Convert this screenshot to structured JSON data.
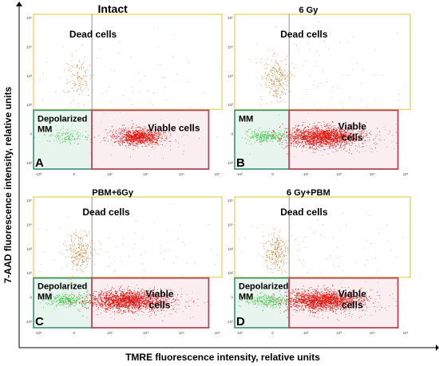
{
  "figure": {
    "x_axis_title": "TMRE fluorescence intensity, relative units",
    "y_axis_title": "7-AAD fluorescence intensity, relative units"
  },
  "colors": {
    "dead_gate": "#e8dc7a",
    "viable_gate": "#b5475a",
    "depolarized_gate": "#3a8f7a",
    "dead_cells": "#c9904a",
    "viable_cells": "#e8140e",
    "depolarized_cells": "#3fc23f",
    "scatter_noise": "#d98a50"
  },
  "chart_data": [
    {
      "type": "scatter",
      "panel": "A",
      "title": "Intact",
      "gates": {
        "dead": "Dead cells",
        "depolarized": "Depolarized\nMM",
        "viable": "Viable cells"
      },
      "populations": {
        "dead": "sparse",
        "depolarized": "sparse",
        "viable": "dense-compact"
      },
      "x_ticks": [
        "-10²",
        "0",
        "10²",
        "10³",
        "10⁴",
        "10⁵"
      ],
      "y_ticks": [
        "-10²",
        "0",
        "10²",
        "10³",
        "10⁴",
        "10⁵"
      ]
    },
    {
      "type": "scatter",
      "panel": "B",
      "title": "6 Gy",
      "gates": {
        "dead": "Dead cells",
        "depolarized": "MM",
        "viable": "Viable\ncells"
      },
      "populations": {
        "dead": "medium",
        "depolarized": "medium",
        "viable": "dense-wide"
      },
      "x_ticks": [
        "-10²",
        "0",
        "10²",
        "10³",
        "10⁴",
        "10⁵"
      ],
      "y_ticks": [
        "-10²",
        "0",
        "10²",
        "10³",
        "10⁴",
        "10⁵"
      ]
    },
    {
      "type": "scatter",
      "panel": "C",
      "title": "PBM+6Gy",
      "gates": {
        "dead": "Dead cells",
        "depolarized": "Depolarized\nMM",
        "viable": "Viable\ncells"
      },
      "populations": {
        "dead": "medium",
        "depolarized": "medium",
        "viable": "dense-wide"
      },
      "x_ticks": [
        "-10²",
        "0",
        "10²",
        "10³",
        "10⁴",
        "10⁵"
      ],
      "y_ticks": [
        "-10²",
        "0",
        "10²",
        "10³",
        "10⁴",
        "10⁵"
      ]
    },
    {
      "type": "scatter",
      "panel": "D",
      "title": "6 Gy+PBM",
      "gates": {
        "dead": "Dead cells",
        "depolarized": "Depolarized\nMM",
        "viable": "Viable\ncells"
      },
      "populations": {
        "dead": "medium",
        "depolarized": "medium",
        "viable": "dense-wide"
      },
      "x_ticks": [
        "-10²",
        "0",
        "10²",
        "10³",
        "10⁴",
        "10⁵"
      ],
      "y_ticks": [
        "-10²",
        "0",
        "10²",
        "10³",
        "10⁴",
        "10⁵"
      ]
    }
  ]
}
